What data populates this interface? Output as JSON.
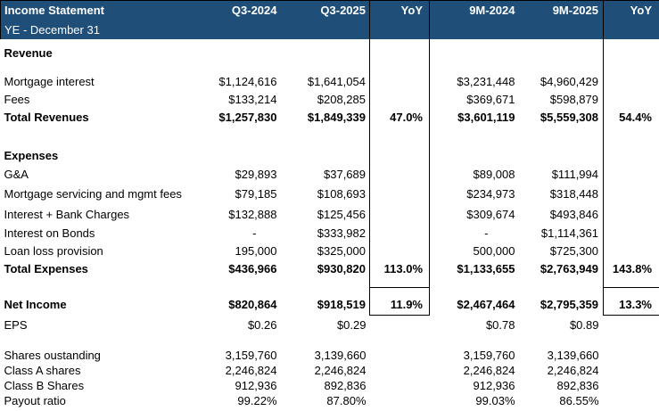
{
  "header": {
    "title": "Income Statement",
    "subtitle": "YE - December 31",
    "columns": [
      "Q3-2024",
      "Q3-2025",
      "YoY",
      "9M-2024",
      "9M-2025",
      "YoY"
    ]
  },
  "colors": {
    "header_bg": "#1F4E79",
    "header_text": "#FFFFFF",
    "border": "#000000",
    "body_text": "#000000",
    "background": "#FFFFFF"
  },
  "rows": [
    {
      "id": "spacer-0",
      "kind": "blank",
      "label": "",
      "values": [
        "",
        "",
        "",
        "",
        "",
        ""
      ]
    },
    {
      "id": "revenue-header",
      "kind": "section",
      "label": "Revenue",
      "values": [
        "",
        "",
        "",
        "",
        "",
        ""
      ]
    },
    {
      "id": "spacer-1",
      "kind": "blank",
      "label": "",
      "values": [
        "",
        "",
        "",
        "",
        "",
        ""
      ]
    },
    {
      "id": "mortgage-interest",
      "kind": "item",
      "label": "Mortgage interest",
      "values": [
        "$1,124,616",
        "$1,641,054",
        "",
        "$3,231,448",
        "$4,960,429",
        ""
      ]
    },
    {
      "id": "fees",
      "kind": "item",
      "label": "Fees",
      "values": [
        "$133,214",
        "$208,285",
        "",
        "$369,671",
        "$598,879",
        ""
      ]
    },
    {
      "id": "total-revenues",
      "kind": "total",
      "label": "Total Revenues",
      "values": [
        "$1,257,830",
        "$1,849,339",
        "47.0%",
        "$3,601,119",
        "$5,559,308",
        "54.4%"
      ]
    },
    {
      "id": "spacer-2",
      "kind": "blank",
      "label": "",
      "values": [
        "",
        "",
        "",
        "",
        "",
        ""
      ]
    },
    {
      "id": "expenses-header",
      "kind": "section",
      "label": "Expenses",
      "values": [
        "",
        "",
        "",
        "",
        "",
        ""
      ]
    },
    {
      "id": "ga",
      "kind": "item",
      "label": "G&A",
      "values": [
        "$29,893",
        "$37,689",
        "",
        "$89,008",
        "$111,994",
        ""
      ]
    },
    {
      "id": "mortgage-servicing",
      "kind": "item",
      "label": "Mortgage servicing and mgmt fees",
      "values": [
        "$79,185",
        "$108,693",
        "",
        "$234,973",
        "$318,448",
        ""
      ]
    },
    {
      "id": "interest-bank-charges",
      "kind": "item",
      "label": "Interest + Bank Charges",
      "values": [
        "$132,888",
        "$125,456",
        "",
        "$309,674",
        "$493,846",
        ""
      ]
    },
    {
      "id": "interest-on-bonds",
      "kind": "item",
      "label": "Interest on Bonds",
      "values": [
        "-",
        "$333,982",
        "",
        "-",
        "$1,114,361",
        ""
      ]
    },
    {
      "id": "loan-loss-provision",
      "kind": "item",
      "label": "Loan loss provision",
      "values": [
        "195,000",
        "$325,000",
        "",
        "500,000",
        "$725,300",
        ""
      ]
    },
    {
      "id": "total-expenses",
      "kind": "total",
      "label": "Total Expenses",
      "values": [
        "$436,966",
        "$930,820",
        "113.0%",
        "$1,133,655",
        "$2,763,949",
        "143.8%"
      ]
    },
    {
      "id": "spacer-3",
      "kind": "blank",
      "label": "",
      "values": [
        "",
        "",
        "",
        "",
        "",
        ""
      ]
    },
    {
      "id": "net-income",
      "kind": "net",
      "label": "Net Income",
      "values": [
        "$820,864",
        "$918,519",
        "11.9%",
        "$2,467,464",
        "$2,795,359",
        "13.3%"
      ]
    },
    {
      "id": "eps",
      "kind": "stat",
      "label": "EPS",
      "values": [
        "$0.26",
        "$0.29",
        "",
        "$0.78",
        "$0.89",
        ""
      ]
    },
    {
      "id": "spacer-4",
      "kind": "blank",
      "label": "",
      "values": [
        "",
        "",
        "",
        "",
        "",
        ""
      ]
    },
    {
      "id": "shares-outstanding",
      "kind": "stat",
      "label": "Shares oustanding",
      "values": [
        "3,159,760",
        "3,139,660",
        "",
        "3,159,760",
        "3,139,660",
        ""
      ]
    },
    {
      "id": "class-a-shares",
      "kind": "stat",
      "label": "Class A shares",
      "values": [
        "2,246,824",
        "2,246,824",
        "",
        "2,246,824",
        "2,246,824",
        ""
      ]
    },
    {
      "id": "class-b-shares",
      "kind": "stat",
      "label": "Class B Shares",
      "values": [
        "912,936",
        "892,836",
        "",
        "912,936",
        "892,836",
        ""
      ]
    },
    {
      "id": "payout-ratio",
      "kind": "stat",
      "label": "Payout ratio",
      "values": [
        "99.22%",
        "87.80%",
        "",
        "99.03%",
        "86.55%",
        ""
      ]
    }
  ]
}
